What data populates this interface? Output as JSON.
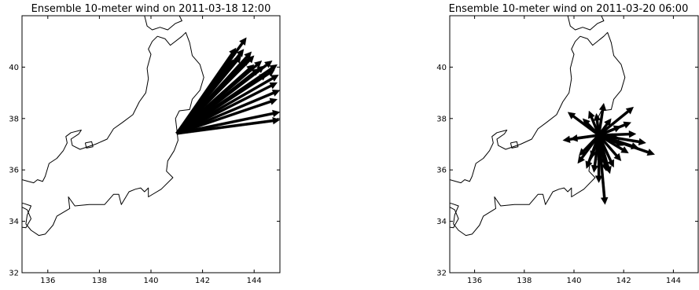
{
  "panels": [
    {
      "title": "Ensemble 10-meter wind on 2011-03-18 12:00",
      "map": {
        "lon_range": [
          135,
          145
        ],
        "lat_range": [
          32,
          42
        ],
        "x_ticks": [
          136,
          138,
          140,
          142,
          144
        ],
        "y_ticks": [
          32,
          34,
          36,
          38,
          40
        ],
        "origin": {
          "lon": 141.0,
          "lat": 37.42
        },
        "arrow_tips": [
          [
            143.7,
            41.15
          ],
          [
            143.3,
            40.75
          ],
          [
            143.6,
            40.7
          ],
          [
            143.9,
            40.6
          ],
          [
            143.5,
            40.45
          ],
          [
            144.0,
            40.45
          ],
          [
            143.2,
            40.3
          ],
          [
            143.8,
            40.35
          ],
          [
            144.3,
            40.25
          ],
          [
            144.7,
            40.25
          ],
          [
            144.0,
            40.1
          ],
          [
            144.4,
            40.05
          ],
          [
            144.9,
            40.1
          ],
          [
            144.2,
            39.95
          ],
          [
            144.8,
            39.9
          ],
          [
            144.5,
            39.75
          ],
          [
            144.95,
            39.7
          ],
          [
            144.9,
            39.4
          ],
          [
            145.0,
            39.1
          ],
          [
            144.9,
            38.75
          ],
          [
            145.0,
            38.25
          ],
          [
            145.0,
            37.95
          ]
        ]
      }
    },
    {
      "title": "Ensemble 10-meter wind on 2011-03-20 06:00",
      "map": {
        "lon_range": [
          135,
          145
        ],
        "lat_range": [
          32,
          42
        ],
        "x_ticks": [
          136,
          138,
          140,
          142,
          144
        ],
        "y_ticks": [
          32,
          34,
          36,
          38,
          40
        ],
        "origin": {
          "lon": 141.0,
          "lat": 37.35
        },
        "arrow_tips": [
          [
            142.4,
            38.45
          ],
          [
            142.3,
            37.85
          ],
          [
            142.9,
            37.05
          ],
          [
            143.25,
            36.6
          ],
          [
            142.6,
            36.85
          ],
          [
            142.2,
            36.65
          ],
          [
            141.9,
            36.35
          ],
          [
            141.6,
            36.1
          ],
          [
            141.45,
            35.85
          ],
          [
            141.25,
            34.65
          ],
          [
            141.0,
            35.5
          ],
          [
            140.8,
            35.9
          ],
          [
            140.5,
            36.05
          ],
          [
            140.15,
            36.25
          ],
          [
            140.2,
            36.55
          ],
          [
            139.55,
            37.15
          ],
          [
            139.85,
            37.2
          ],
          [
            139.75,
            38.25
          ],
          [
            140.35,
            38.0
          ],
          [
            140.6,
            38.3
          ],
          [
            140.9,
            38.2
          ],
          [
            141.2,
            38.6
          ],
          [
            141.5,
            38.0
          ],
          [
            141.9,
            37.7
          ],
          [
            141.8,
            37.25
          ],
          [
            142.5,
            37.4
          ],
          [
            142.0,
            36.95
          ],
          [
            141.3,
            35.95
          ],
          [
            140.7,
            36.45
          ],
          [
            141.1,
            36.15
          ]
        ]
      }
    }
  ],
  "coastline": [
    [
      [
        135.0,
        35.62
      ],
      [
        135.25,
        35.55
      ],
      [
        135.45,
        35.5
      ],
      [
        135.6,
        35.62
      ],
      [
        135.8,
        35.55
      ],
      [
        135.9,
        35.75
      ],
      [
        136.05,
        36.25
      ],
      [
        136.35,
        36.45
      ],
      [
        136.6,
        36.75
      ],
      [
        136.75,
        37.05
      ],
      [
        136.7,
        37.3
      ],
      [
        136.9,
        37.45
      ],
      [
        137.3,
        37.55
      ],
      [
        137.2,
        37.4
      ],
      [
        136.9,
        37.2
      ],
      [
        136.95,
        36.95
      ],
      [
        137.25,
        36.8
      ],
      [
        137.85,
        37.0
      ],
      [
        138.3,
        37.2
      ],
      [
        138.55,
        37.6
      ],
      [
        138.9,
        37.85
      ],
      [
        139.3,
        38.15
      ],
      [
        139.55,
        38.65
      ],
      [
        139.8,
        39.0
      ],
      [
        139.9,
        39.55
      ],
      [
        139.85,
        39.95
      ],
      [
        140.0,
        40.5
      ],
      [
        139.9,
        40.7
      ],
      [
        140.05,
        41.0
      ],
      [
        140.25,
        41.2
      ],
      [
        140.55,
        41.1
      ],
      [
        140.75,
        40.85
      ],
      [
        141.2,
        41.2
      ],
      [
        141.35,
        41.35
      ],
      [
        141.5,
        40.95
      ],
      [
        141.6,
        40.45
      ],
      [
        141.9,
        40.1
      ],
      [
        142.05,
        39.6
      ],
      [
        141.9,
        39.1
      ],
      [
        141.6,
        38.75
      ],
      [
        141.5,
        38.35
      ],
      [
        141.1,
        38.3
      ],
      [
        140.95,
        38.0
      ],
      [
        141.0,
        37.6
      ],
      [
        141.05,
        37.15
      ],
      [
        140.9,
        36.75
      ],
      [
        140.65,
        36.35
      ],
      [
        140.6,
        35.95
      ],
      [
        140.85,
        35.7
      ],
      [
        140.4,
        35.25
      ],
      [
        139.9,
        34.95
      ],
      [
        139.9,
        35.3
      ],
      [
        139.75,
        35.15
      ],
      [
        139.6,
        35.3
      ],
      [
        139.4,
        35.25
      ],
      [
        139.15,
        35.15
      ],
      [
        138.85,
        34.65
      ],
      [
        138.75,
        35.05
      ],
      [
        138.55,
        35.05
      ],
      [
        138.2,
        34.65
      ],
      [
        137.6,
        34.65
      ],
      [
        137.05,
        34.6
      ],
      [
        136.8,
        34.95
      ],
      [
        136.85,
        34.5
      ],
      [
        136.35,
        34.2
      ],
      [
        136.2,
        33.85
      ],
      [
        135.9,
        33.5
      ],
      [
        135.65,
        33.45
      ],
      [
        135.35,
        33.65
      ],
      [
        135.15,
        33.9
      ],
      [
        135.2,
        34.25
      ],
      [
        135.35,
        34.6
      ],
      [
        135.05,
        34.7
      ],
      [
        135.0,
        34.7
      ]
    ],
    [
      [
        135.0,
        34.55
      ],
      [
        135.2,
        34.45
      ],
      [
        135.35,
        34.1
      ],
      [
        135.15,
        33.75
      ],
      [
        134.8,
        33.8
      ],
      [
        134.7,
        34.2
      ],
      [
        135.0,
        34.55
      ]
    ],
    [
      [
        139.75,
        42.0
      ],
      [
        139.85,
        41.6
      ],
      [
        140.05,
        41.45
      ],
      [
        140.35,
        41.55
      ],
      [
        140.65,
        41.45
      ],
      [
        140.95,
        41.7
      ],
      [
        141.2,
        41.8
      ],
      [
        141.1,
        42.0
      ]
    ],
    [
      [
        137.45,
        37.05
      ],
      [
        137.7,
        37.1
      ],
      [
        137.75,
        36.9
      ],
      [
        137.5,
        36.85
      ],
      [
        137.45,
        37.05
      ]
    ]
  ]
}
